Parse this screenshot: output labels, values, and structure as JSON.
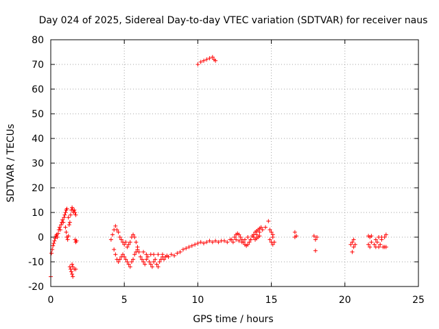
{
  "chart_data": {
    "type": "scatter",
    "title": "Day 024 of 2025, Sidereal Day-to-day VTEC variation (SDTVAR) for receiver naus",
    "xlabel": "GPS time / hours",
    "ylabel": "SDTVAR / TECUs",
    "xlim": [
      0,
      25
    ],
    "ylim": [
      -20,
      80
    ],
    "xticks": [
      0,
      5,
      10,
      15,
      20,
      25
    ],
    "yticks": [
      -20,
      -10,
      0,
      10,
      20,
      30,
      40,
      50,
      60,
      70,
      80
    ],
    "grid": true,
    "marker": "+",
    "color": "#ff0000",
    "series": [
      {
        "name": "SDTVAR",
        "points": [
          [
            0.0,
            -16
          ],
          [
            0.05,
            -6.5
          ],
          [
            0.1,
            -5
          ],
          [
            0.15,
            -3.5
          ],
          [
            0.2,
            -2.5
          ],
          [
            0.25,
            -1.5
          ],
          [
            0.3,
            -0.5
          ],
          [
            0.35,
            0.5
          ],
          [
            0.4,
            1
          ],
          [
            0.45,
            0
          ],
          [
            0.5,
            1.5
          ],
          [
            0.55,
            3
          ],
          [
            0.6,
            4
          ],
          [
            0.65,
            3
          ],
          [
            0.7,
            5
          ],
          [
            0.75,
            6
          ],
          [
            0.8,
            7
          ],
          [
            0.85,
            6
          ],
          [
            0.9,
            8
          ],
          [
            0.95,
            9
          ],
          [
            1.0,
            10
          ],
          [
            1.05,
            11
          ],
          [
            1.1,
            11.5
          ],
          [
            1.0,
            4
          ],
          [
            1.05,
            2
          ],
          [
            1.1,
            0
          ],
          [
            1.15,
            -1
          ],
          [
            1.2,
            0.5
          ],
          [
            1.2,
            8
          ],
          [
            1.25,
            5
          ],
          [
            1.3,
            6
          ],
          [
            1.35,
            9
          ],
          [
            1.4,
            11
          ],
          [
            1.45,
            12
          ],
          [
            1.5,
            11
          ],
          [
            1.55,
            10
          ],
          [
            1.6,
            11
          ],
          [
            1.65,
            10
          ],
          [
            1.7,
            9
          ],
          [
            1.3,
            -12
          ],
          [
            1.35,
            -13
          ],
          [
            1.4,
            -14
          ],
          [
            1.45,
            -15
          ],
          [
            1.5,
            -16
          ],
          [
            1.45,
            -11
          ],
          [
            1.5,
            -12
          ],
          [
            1.6,
            -13
          ],
          [
            1.7,
            -13
          ],
          [
            1.65,
            -1
          ],
          [
            1.7,
            -2
          ],
          [
            1.75,
            -1.5
          ],
          [
            4.1,
            -1
          ],
          [
            4.2,
            1
          ],
          [
            4.3,
            3
          ],
          [
            4.4,
            4.5
          ],
          [
            4.5,
            3
          ],
          [
            4.6,
            2
          ],
          [
            4.7,
            0
          ],
          [
            4.8,
            -1
          ],
          [
            4.9,
            -2
          ],
          [
            5.0,
            -3
          ],
          [
            5.1,
            -2
          ],
          [
            5.2,
            -4
          ],
          [
            5.3,
            -3
          ],
          [
            5.4,
            -2
          ],
          [
            5.5,
            0
          ],
          [
            5.6,
            1
          ],
          [
            5.7,
            0
          ],
          [
            5.8,
            -2
          ],
          [
            5.9,
            -4
          ],
          [
            6.0,
            -6
          ],
          [
            4.3,
            -5
          ],
          [
            4.4,
            -7
          ],
          [
            4.5,
            -9
          ],
          [
            4.6,
            -10
          ],
          [
            4.7,
            -9
          ],
          [
            4.8,
            -8
          ],
          [
            4.9,
            -7
          ],
          [
            5.0,
            -8
          ],
          [
            5.1,
            -9
          ],
          [
            5.2,
            -10
          ],
          [
            5.3,
            -11
          ],
          [
            5.4,
            -12
          ],
          [
            5.5,
            -10
          ],
          [
            5.6,
            -9
          ],
          [
            5.7,
            -7
          ],
          [
            5.8,
            -6
          ],
          [
            5.9,
            -5
          ],
          [
            6.1,
            -8
          ],
          [
            6.2,
            -9
          ],
          [
            6.3,
            -10
          ],
          [
            6.4,
            -11
          ],
          [
            6.5,
            -9
          ],
          [
            6.6,
            -8
          ],
          [
            6.7,
            -10
          ],
          [
            6.8,
            -11
          ],
          [
            6.9,
            -12
          ],
          [
            7.0,
            -10
          ],
          [
            7.1,
            -9
          ],
          [
            7.2,
            -11
          ],
          [
            7.3,
            -12
          ],
          [
            7.4,
            -10
          ],
          [
            7.5,
            -9
          ],
          [
            7.6,
            -8
          ],
          [
            7.7,
            -9
          ],
          [
            7.8,
            -8
          ],
          [
            7.9,
            -7.5
          ],
          [
            8.0,
            -8
          ],
          [
            6.3,
            -6
          ],
          [
            6.5,
            -7
          ],
          [
            6.8,
            -7
          ],
          [
            7.0,
            -7
          ],
          [
            7.3,
            -7
          ],
          [
            7.6,
            -7
          ],
          [
            8.2,
            -7
          ],
          [
            8.4,
            -7.5
          ],
          [
            8.6,
            -6.5
          ],
          [
            8.8,
            -6
          ],
          [
            9.0,
            -5
          ],
          [
            9.2,
            -4.5
          ],
          [
            9.4,
            -4
          ],
          [
            9.6,
            -3.5
          ],
          [
            9.8,
            -3
          ],
          [
            10.0,
            -2.5
          ],
          [
            10.2,
            -2
          ],
          [
            10.4,
            -2.5
          ],
          [
            10.6,
            -2
          ],
          [
            10.8,
            -1.5
          ],
          [
            11.0,
            -2
          ],
          [
            11.2,
            -1.5
          ],
          [
            11.4,
            -2
          ],
          [
            11.6,
            -1.5
          ],
          [
            11.8,
            -1.5
          ],
          [
            12.0,
            -2
          ],
          [
            12.2,
            -1
          ],
          [
            12.4,
            -2
          ],
          [
            12.6,
            -1
          ],
          [
            12.8,
            -1.5
          ],
          [
            13.0,
            -2
          ],
          [
            13.2,
            -1
          ],
          [
            13.4,
            0
          ],
          [
            13.6,
            -1
          ],
          [
            13.8,
            0
          ],
          [
            14.0,
            1
          ],
          [
            14.2,
            2
          ],
          [
            14.4,
            3
          ],
          [
            14.6,
            4
          ],
          [
            12.3,
            -1
          ],
          [
            12.5,
            0
          ],
          [
            12.6,
            1
          ],
          [
            12.7,
            1.5
          ],
          [
            12.8,
            1
          ],
          [
            12.9,
            0
          ],
          [
            13.0,
            -1
          ],
          [
            13.1,
            -2
          ],
          [
            13.2,
            -3
          ],
          [
            13.3,
            -3.5
          ],
          [
            13.4,
            -3
          ],
          [
            13.5,
            -2
          ],
          [
            13.6,
            -1
          ],
          [
            13.7,
            0.5
          ],
          [
            13.8,
            1
          ],
          [
            13.9,
            2
          ],
          [
            14.0,
            2.5
          ],
          [
            14.1,
            3
          ],
          [
            14.2,
            3.5
          ],
          [
            14.3,
            4
          ],
          [
            13.9,
            -1
          ],
          [
            14.0,
            -0.5
          ],
          [
            14.1,
            0
          ],
          [
            14.2,
            0.5
          ],
          [
            10.0,
            70
          ],
          [
            10.2,
            71
          ],
          [
            10.4,
            71.5
          ],
          [
            10.6,
            72
          ],
          [
            10.8,
            72.5
          ],
          [
            11.0,
            73
          ],
          [
            11.1,
            72
          ],
          [
            11.2,
            71.5
          ],
          [
            14.8,
            6.5
          ],
          [
            14.9,
            3
          ],
          [
            15.0,
            2
          ],
          [
            15.1,
            1
          ],
          [
            14.9,
            -1
          ],
          [
            15.0,
            -2
          ],
          [
            15.1,
            -3
          ],
          [
            15.2,
            -2
          ],
          [
            15.1,
            0
          ],
          [
            16.6,
            2
          ],
          [
            16.6,
            0
          ],
          [
            16.7,
            0.5
          ],
          [
            17.9,
            0.5
          ],
          [
            18.0,
            -1
          ],
          [
            18.0,
            -5.5
          ],
          [
            18.1,
            0
          ],
          [
            20.4,
            -3
          ],
          [
            20.5,
            -2
          ],
          [
            20.6,
            -4
          ],
          [
            20.5,
            -6
          ],
          [
            20.6,
            -1
          ],
          [
            20.7,
            -3
          ],
          [
            21.6,
            0.5
          ],
          [
            21.7,
            0
          ],
          [
            21.6,
            -3
          ],
          [
            21.7,
            -4
          ],
          [
            21.8,
            -2
          ],
          [
            21.8,
            0.5
          ],
          [
            22.0,
            -3
          ],
          [
            22.1,
            -1
          ],
          [
            22.2,
            -2
          ],
          [
            22.3,
            0
          ],
          [
            22.4,
            -3
          ],
          [
            22.5,
            -1
          ],
          [
            22.6,
            -4
          ],
          [
            22.7,
            0
          ],
          [
            22.8,
            -4
          ],
          [
            22.1,
            -4
          ],
          [
            22.3,
            -4
          ],
          [
            22.5,
            0
          ],
          [
            22.7,
            -4
          ],
          [
            22.8,
            1
          ]
        ]
      }
    ]
  }
}
